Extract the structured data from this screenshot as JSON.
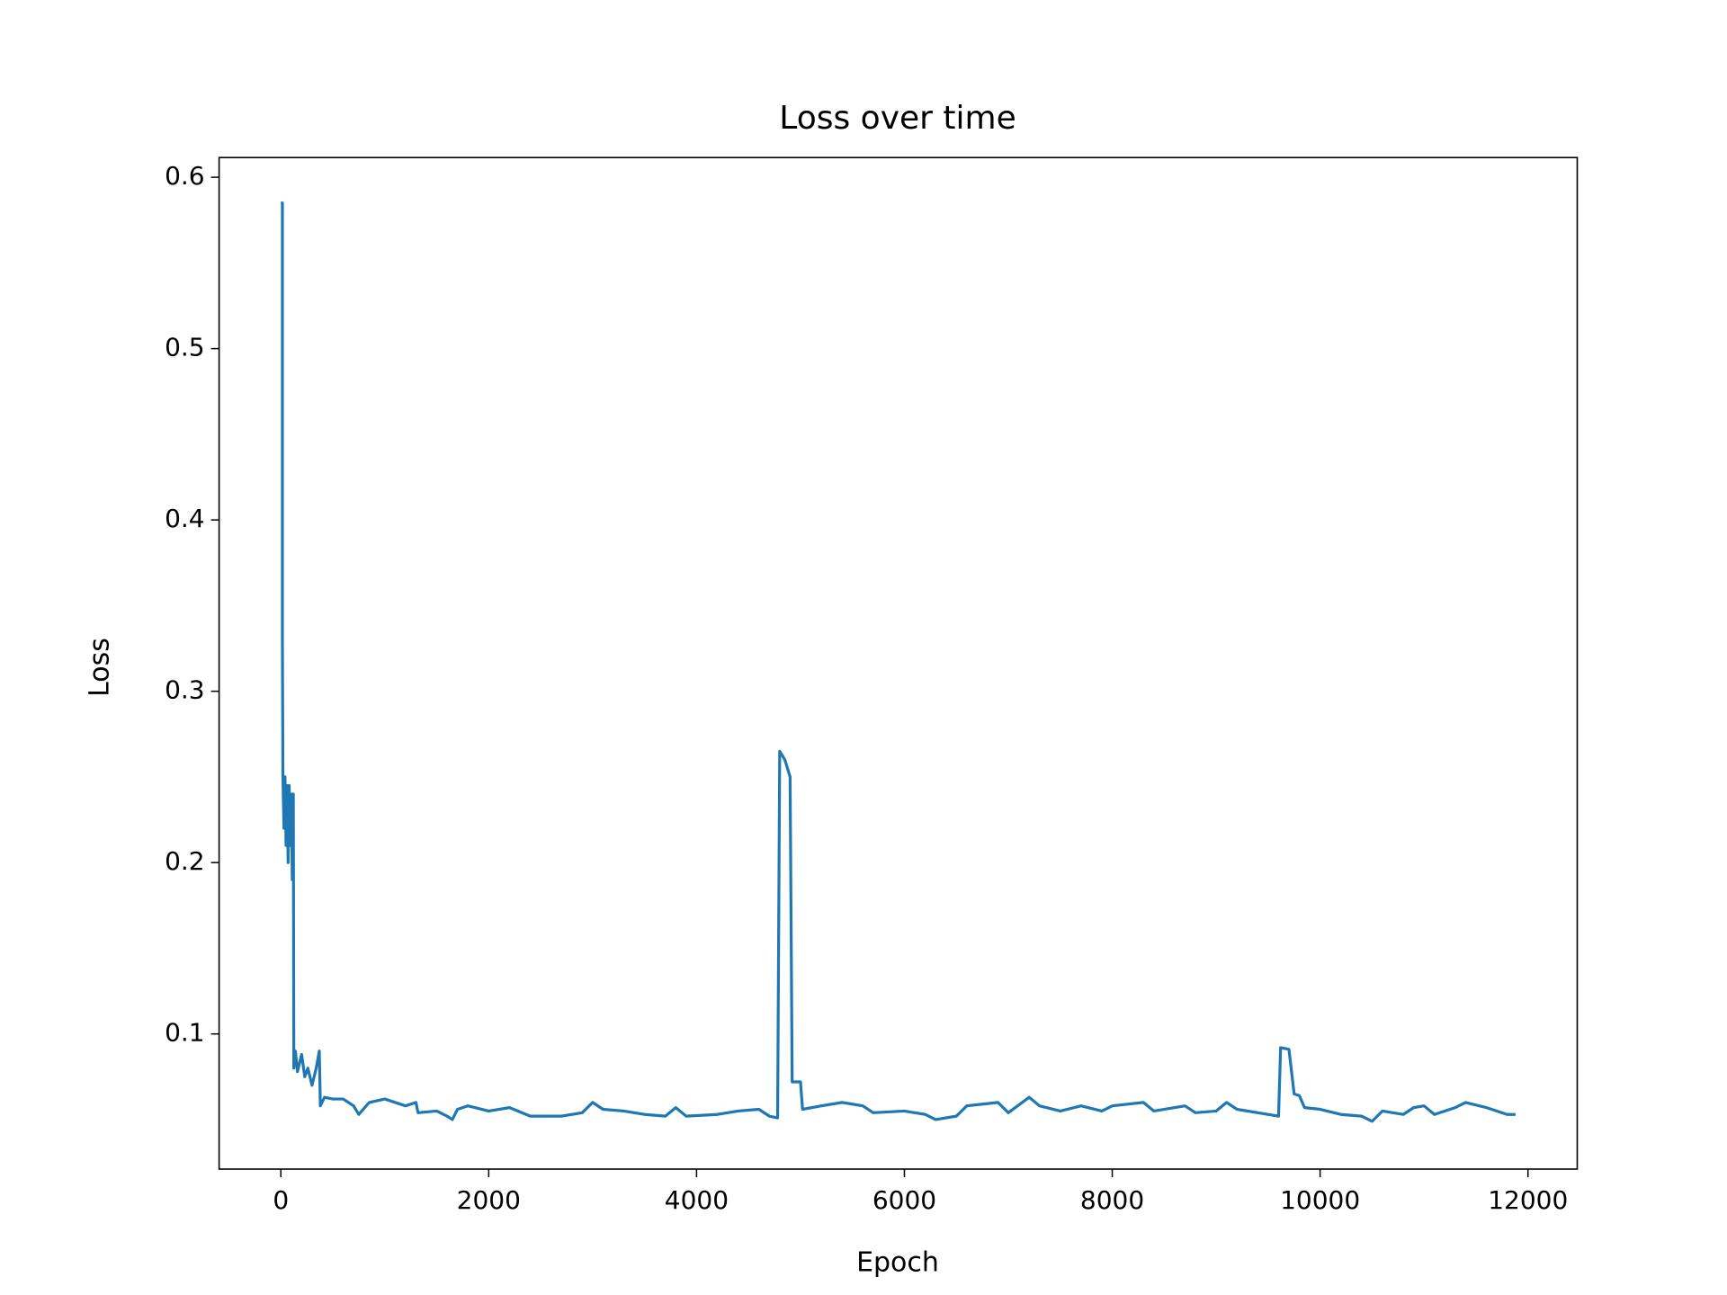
{
  "chart_data": {
    "type": "line",
    "title": "Loss over time",
    "x_label": "Epoch",
    "y_label": "Loss",
    "xlim": [
      -594,
      12474
    ],
    "ylim": [
      0.0211,
      0.6115
    ],
    "xticks": [
      0,
      2000,
      4000,
      6000,
      8000,
      10000,
      12000
    ],
    "yticks": [
      0.1,
      0.2,
      0.3,
      0.4,
      0.5,
      0.6
    ],
    "grid": false,
    "series": [
      {
        "color": "#1f77b4",
        "x": [
          0,
          15,
          15,
          20,
          30,
          40,
          50,
          60,
          70,
          80,
          90,
          100,
          110,
          120,
          125,
          140,
          160,
          200,
          230,
          260,
          300,
          340,
          370,
          380,
          420,
          500,
          600,
          700,
          750,
          850,
          1000,
          1200,
          1300,
          1320,
          1500,
          1600,
          1650,
          1700,
          1800,
          2000,
          2200,
          2400,
          2700,
          2900,
          3000,
          3100,
          3300,
          3500,
          3700,
          3800,
          3900,
          4200,
          4400,
          4600,
          4700,
          4780,
          4800,
          4850,
          4900,
          4920,
          5000,
          5020,
          5200,
          5400,
          5600,
          5700,
          6000,
          6200,
          6300,
          6500,
          6600,
          6900,
          7000,
          7200,
          7300,
          7500,
          7700,
          7900,
          8000,
          8300,
          8400,
          8700,
          8800,
          9000,
          9100,
          9200,
          9400,
          9600,
          9620,
          9700,
          9750,
          9800,
          9850,
          10000,
          10200,
          10400,
          10500,
          10600,
          10800,
          10900,
          11000,
          11100,
          11300,
          11400,
          11600,
          11800,
          11880
        ],
        "values": [
          0.585,
          0.585,
          0.33,
          0.25,
          0.22,
          0.25,
          0.21,
          0.245,
          0.2,
          0.245,
          0.21,
          0.24,
          0.19,
          0.24,
          0.08,
          0.09,
          0.078,
          0.088,
          0.075,
          0.08,
          0.07,
          0.08,
          0.09,
          0.058,
          0.063,
          0.062,
          0.062,
          0.058,
          0.053,
          0.06,
          0.062,
          0.058,
          0.06,
          0.054,
          0.055,
          0.052,
          0.05,
          0.056,
          0.058,
          0.055,
          0.057,
          0.052,
          0.052,
          0.054,
          0.06,
          0.056,
          0.055,
          0.053,
          0.052,
          0.057,
          0.052,
          0.053,
          0.055,
          0.056,
          0.052,
          0.051,
          0.265,
          0.26,
          0.25,
          0.072,
          0.072,
          0.056,
          0.058,
          0.06,
          0.058,
          0.054,
          0.055,
          0.053,
          0.05,
          0.052,
          0.058,
          0.06,
          0.054,
          0.063,
          0.058,
          0.055,
          0.058,
          0.055,
          0.058,
          0.06,
          0.055,
          0.058,
          0.054,
          0.055,
          0.06,
          0.056,
          0.054,
          0.052,
          0.092,
          0.091,
          0.065,
          0.064,
          0.057,
          0.056,
          0.053,
          0.052,
          0.049,
          0.055,
          0.053,
          0.057,
          0.058,
          0.053,
          0.057,
          0.06,
          0.057,
          0.053,
          0.053
        ]
      }
    ]
  }
}
